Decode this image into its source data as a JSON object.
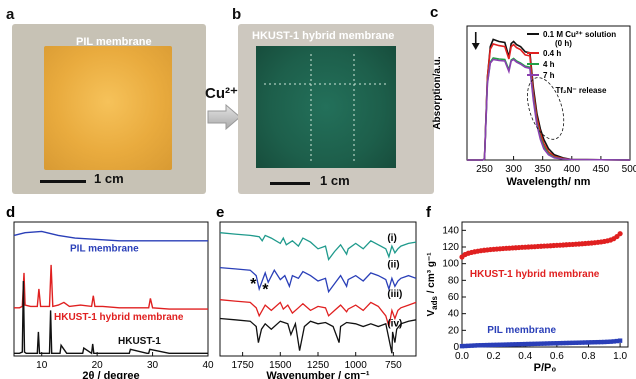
{
  "panels": {
    "a": {
      "letter": "a",
      "label": "PIL membrane",
      "scale": "1 cm"
    },
    "b": {
      "letter": "b",
      "label": "HKUST-1 hybrid membrane",
      "scale": "1 cm"
    },
    "arrow_label": "Cu²⁺"
  },
  "colors": {
    "black": "#111111",
    "red": "#e02020",
    "green": "#22a046",
    "purple": "#8a3fb0",
    "blue": "#2a3fb8",
    "teal": "#1f9a8c"
  },
  "chart_data": [
    {
      "id": "c",
      "letter": "c",
      "type": "line",
      "xlabel": "Wavelength/ nm",
      "ylabel": "Absorption/a.u.",
      "xlim": [
        220,
        500
      ],
      "ylim": [
        0,
        2.6
      ],
      "xticks": [
        250,
        300,
        350,
        400,
        450,
        500
      ],
      "legend": [
        "0.1 M Cu²⁺ solution (0 h)",
        "0.4 h",
        "4 h",
        "7 h"
      ],
      "legend_title_line2": "(0 h)",
      "annotation": "Tf₂N⁻ release",
      "series": [
        {
          "name": "0.1 M Cu²⁺ solution (0 h)",
          "color": "#111111",
          "x": [
            220,
            247,
            250,
            255,
            260,
            265,
            275,
            285,
            292,
            296,
            300,
            305,
            312,
            320,
            328,
            334,
            340,
            346,
            352,
            360,
            370,
            385,
            400,
            500
          ],
          "y": [
            0,
            0,
            0.02,
            1.6,
            2.2,
            2.34,
            2.3,
            2.28,
            2.0,
            2.26,
            2.3,
            2.24,
            2.2,
            2.1,
            2.08,
            1.4,
            0.9,
            0.6,
            0.4,
            0.22,
            0.1,
            0.04,
            0.01,
            0
          ]
        },
        {
          "name": "0.4 h",
          "color": "#e02020",
          "x": [
            220,
            247,
            250,
            255,
            260,
            265,
            275,
            285,
            292,
            296,
            300,
            305,
            312,
            320,
            328,
            334,
            340,
            346,
            352,
            360,
            370,
            385,
            400,
            500
          ],
          "y": [
            0,
            0,
            0.02,
            1.6,
            2.15,
            2.25,
            2.22,
            2.2,
            1.96,
            2.2,
            2.24,
            2.18,
            2.14,
            2.04,
            2.02,
            1.3,
            0.82,
            0.52,
            0.32,
            0.16,
            0.07,
            0.03,
            0.01,
            0
          ]
        },
        {
          "name": "4 h",
          "color": "#22a046",
          "x": [
            220,
            247,
            250,
            255,
            260,
            265,
            275,
            285,
            292,
            296,
            300,
            305,
            312,
            320,
            328,
            334,
            340,
            346,
            352,
            360,
            370,
            385,
            400,
            500
          ],
          "y": [
            0,
            0,
            0.02,
            1.5,
            1.9,
            1.98,
            1.96,
            1.95,
            1.75,
            1.94,
            1.97,
            1.92,
            1.88,
            1.82,
            1.8,
            1.2,
            0.72,
            0.44,
            0.26,
            0.12,
            0.05,
            0.02,
            0.01,
            0
          ]
        },
        {
          "name": "7 h",
          "color": "#8a3fb0",
          "x": [
            220,
            247,
            250,
            255,
            260,
            265,
            275,
            285,
            292,
            296,
            300,
            305,
            312,
            320,
            328,
            334,
            340,
            346,
            352,
            360,
            370,
            385,
            400,
            500
          ],
          "y": [
            0,
            0,
            0.02,
            1.48,
            1.88,
            1.95,
            1.93,
            1.92,
            1.72,
            1.92,
            1.95,
            1.9,
            1.86,
            1.8,
            1.78,
            1.15,
            0.68,
            0.4,
            0.22,
            0.1,
            0.04,
            0.02,
            0.01,
            0
          ]
        }
      ]
    },
    {
      "id": "d",
      "letter": "d",
      "type": "line",
      "xlabel": "2θ / degree",
      "ylabel": "",
      "xlim": [
        5,
        40
      ],
      "xticks": [
        10,
        20,
        30,
        40
      ],
      "series": [
        {
          "name": "PIL membrane",
          "color": "#2a3fb8",
          "x": [
            5,
            7,
            10,
            13,
            16,
            20,
            24,
            28,
            32,
            36,
            40
          ],
          "y": [
            0.9,
            0.92,
            0.93,
            0.9,
            0.88,
            0.87,
            0.86,
            0.86,
            0.86,
            0.86,
            0.86
          ]
        },
        {
          "name": "HKUST-1 hybrid membrane",
          "color": "#e02020",
          "x": [
            5,
            6,
            6.5,
            6.8,
            7,
            8,
            9.2,
            9.5,
            9.8,
            10.5,
            11.4,
            11.7,
            12,
            13,
            14,
            15,
            17,
            19,
            19.3,
            19.6,
            21,
            24,
            26,
            29.3,
            29.6,
            30,
            33,
            36,
            40
          ],
          "y": [
            0.36,
            0.36,
            0.37,
            0.62,
            0.38,
            0.37,
            0.37,
            0.5,
            0.37,
            0.37,
            0.37,
            0.68,
            0.37,
            0.38,
            0.4,
            0.37,
            0.38,
            0.37,
            0.45,
            0.37,
            0.37,
            0.36,
            0.36,
            0.36,
            0.43,
            0.36,
            0.35,
            0.35,
            0.35
          ]
        },
        {
          "name": "HKUST-1",
          "color": "#111111",
          "x": [
            5,
            6,
            6.5,
            6.7,
            6.9,
            7.2,
            8,
            9.2,
            9.4,
            9.6,
            10.5,
            11.4,
            11.6,
            11.8,
            12.5,
            13.3,
            13.5,
            14.5,
            17.4,
            17.6,
            19,
            19.2,
            19.4,
            21,
            24,
            25.8,
            26,
            29,
            29.3,
            29.5,
            33,
            36,
            40
          ],
          "y": [
            0.02,
            0.02,
            0.03,
            0.56,
            0.03,
            0.02,
            0.02,
            0.02,
            0.18,
            0.02,
            0.02,
            0.02,
            0.34,
            0.02,
            0.02,
            0.02,
            0.08,
            0.02,
            0.02,
            0.06,
            0.02,
            0.09,
            0.02,
            0.02,
            0.02,
            0.02,
            0.05,
            0.02,
            0.02,
            0.05,
            0.02,
            0.02,
            0.02
          ]
        }
      ],
      "labels": [
        "PIL membrane",
        "HKUST-1 hybrid membrane",
        "HKUST-1"
      ]
    },
    {
      "id": "e",
      "letter": "e",
      "type": "line",
      "xlabel": "Wavenumber / cm⁻¹",
      "ylabel": "",
      "xlim": [
        1900,
        600
      ],
      "xticks": [
        1750,
        1500,
        1250,
        1000,
        750
      ],
      "roman": [
        "(i)",
        "(ii)",
        "(iii)",
        "(iv)"
      ],
      "markers": [
        "*",
        "*"
      ],
      "series": [
        {
          "name": "(i)",
          "color": "#1f9a8c",
          "x": [
            1900,
            1800,
            1700,
            1640,
            1620,
            1600,
            1560,
            1500,
            1480,
            1460,
            1420,
            1380,
            1350,
            1300,
            1250,
            1200,
            1180,
            1140,
            1100,
            1060,
            1050,
            1000,
            950,
            900,
            850,
            800,
            780,
            760,
            740,
            720,
            700,
            650,
            600
          ],
          "y": [
            0.92,
            0.91,
            0.9,
            0.89,
            0.86,
            0.9,
            0.88,
            0.84,
            0.88,
            0.83,
            0.86,
            0.82,
            0.88,
            0.85,
            0.8,
            0.82,
            0.72,
            0.78,
            0.83,
            0.76,
            0.8,
            0.84,
            0.8,
            0.86,
            0.83,
            0.8,
            0.74,
            0.82,
            0.77,
            0.8,
            0.82,
            0.84,
            0.85
          ]
        },
        {
          "name": "(ii)",
          "color": "#2a3fb8",
          "x": [
            1900,
            1800,
            1700,
            1660,
            1640,
            1600,
            1580,
            1540,
            1500,
            1470,
            1440,
            1420,
            1380,
            1350,
            1300,
            1250,
            1200,
            1180,
            1140,
            1100,
            1060,
            1050,
            1000,
            950,
            900,
            850,
            800,
            780,
            760,
            740,
            720,
            700,
            650,
            600
          ],
          "y": [
            0.66,
            0.65,
            0.64,
            0.6,
            0.5,
            0.62,
            0.55,
            0.64,
            0.57,
            0.6,
            0.52,
            0.6,
            0.58,
            0.63,
            0.6,
            0.56,
            0.58,
            0.48,
            0.54,
            0.6,
            0.52,
            0.57,
            0.6,
            0.56,
            0.62,
            0.6,
            0.57,
            0.5,
            0.58,
            0.52,
            0.56,
            0.58,
            0.6,
            0.58
          ]
        },
        {
          "name": "(iii)",
          "color": "#e02020",
          "x": [
            1900,
            1800,
            1700,
            1660,
            1640,
            1600,
            1560,
            1500,
            1480,
            1450,
            1420,
            1380,
            1350,
            1300,
            1250,
            1200,
            1180,
            1140,
            1100,
            1060,
            1050,
            1000,
            950,
            900,
            850,
            800,
            780,
            760,
            740,
            720,
            700,
            650,
            600
          ],
          "y": [
            0.42,
            0.41,
            0.4,
            0.36,
            0.3,
            0.38,
            0.34,
            0.4,
            0.35,
            0.38,
            0.32,
            0.36,
            0.39,
            0.34,
            0.37,
            0.36,
            0.3,
            0.34,
            0.38,
            0.33,
            0.35,
            0.38,
            0.34,
            0.4,
            0.37,
            0.3,
            0.22,
            0.34,
            0.28,
            0.34,
            0.36,
            0.38,
            0.4
          ]
        },
        {
          "name": "(iv)",
          "color": "#111111",
          "x": [
            1900,
            1800,
            1700,
            1660,
            1645,
            1625,
            1600,
            1560,
            1500,
            1450,
            1430,
            1400,
            1372,
            1340,
            1300,
            1250,
            1200,
            1150,
            1110,
            1100,
            1060,
            1000,
            950,
            900,
            850,
            800,
            760,
            755,
            740,
            728,
            700,
            650,
            600
          ],
          "y": [
            0.28,
            0.27,
            0.26,
            0.22,
            0.1,
            0.2,
            0.24,
            0.2,
            0.26,
            0.24,
            0.16,
            0.24,
            0.04,
            0.22,
            0.26,
            0.24,
            0.25,
            0.22,
            0.1,
            0.22,
            0.25,
            0.24,
            0.22,
            0.24,
            0.22,
            0.24,
            0.02,
            0.18,
            0.1,
            0.2,
            0.24,
            0.26,
            0.27
          ]
        }
      ]
    },
    {
      "id": "f",
      "letter": "f",
      "type": "scatter",
      "xlabel": "P/P₀",
      "ylabel": "V",
      "ylabel_sub": "ads",
      "ylabel_unit": " / cm³ g⁻¹",
      "xlim": [
        0,
        1.05
      ],
      "ylim": [
        0,
        150
      ],
      "xticks": [
        0.0,
        0.2,
        0.4,
        0.6,
        0.8,
        1.0
      ],
      "yticks": [
        0,
        20,
        40,
        60,
        80,
        100,
        120,
        140
      ],
      "series": [
        {
          "name": "HKUST-1 hybrid membrane",
          "color": "#e02020",
          "x": [
            0.0,
            0.02,
            0.04,
            0.06,
            0.08,
            0.1,
            0.12,
            0.14,
            0.16,
            0.18,
            0.2,
            0.22,
            0.24,
            0.26,
            0.28,
            0.3,
            0.32,
            0.34,
            0.36,
            0.38,
            0.4,
            0.42,
            0.44,
            0.46,
            0.48,
            0.5,
            0.52,
            0.54,
            0.56,
            0.58,
            0.6,
            0.62,
            0.64,
            0.66,
            0.68,
            0.7,
            0.72,
            0.74,
            0.76,
            0.78,
            0.8,
            0.82,
            0.84,
            0.86,
            0.88,
            0.9,
            0.92,
            0.94,
            0.96,
            0.98,
            1.0
          ],
          "y": [
            108,
            111,
            112.5,
            113.5,
            114.3,
            115,
            115.6,
            116.1,
            116.5,
            116.9,
            117.2,
            117.5,
            117.8,
            118.1,
            118.4,
            118.6,
            118.9,
            119.1,
            119.3,
            119.6,
            119.8,
            120,
            120.2,
            120.4,
            120.7,
            120.9,
            121.1,
            121.3,
            121.5,
            121.8,
            122,
            122.2,
            122.4,
            122.7,
            122.9,
            123.1,
            123.4,
            123.6,
            123.9,
            124.2,
            124.5,
            124.8,
            125.2,
            125.6,
            126.1,
            126.7,
            127.4,
            128.4,
            130,
            132.5,
            136
          ]
        },
        {
          "name": "PIL membrane",
          "color": "#2a3fb8",
          "x": [
            0.0,
            0.02,
            0.04,
            0.06,
            0.08,
            0.1,
            0.12,
            0.14,
            0.16,
            0.18,
            0.2,
            0.22,
            0.24,
            0.26,
            0.28,
            0.3,
            0.32,
            0.34,
            0.36,
            0.38,
            0.4,
            0.42,
            0.44,
            0.46,
            0.48,
            0.5,
            0.52,
            0.54,
            0.56,
            0.58,
            0.6,
            0.62,
            0.64,
            0.66,
            0.68,
            0.7,
            0.72,
            0.74,
            0.76,
            0.78,
            0.8,
            0.82,
            0.84,
            0.86,
            0.88,
            0.9,
            0.92,
            0.94,
            0.96,
            0.98,
            1.0
          ],
          "y": [
            1,
            1.2,
            1.4,
            1.6,
            1.8,
            2,
            2.1,
            2.2,
            2.3,
            2.4,
            2.5,
            2.6,
            2.7,
            2.8,
            2.9,
            3,
            3.1,
            3.2,
            3.3,
            3.4,
            3.5,
            3.6,
            3.7,
            3.8,
            3.9,
            4,
            4.1,
            4.2,
            4.3,
            4.4,
            4.5,
            4.6,
            4.7,
            4.8,
            4.9,
            5,
            5.1,
            5.2,
            5.3,
            5.4,
            5.5,
            5.6,
            5.7,
            5.8,
            5.9,
            6,
            6.2,
            6.4,
            6.7,
            7.1,
            7.6
          ]
        }
      ]
    }
  ]
}
